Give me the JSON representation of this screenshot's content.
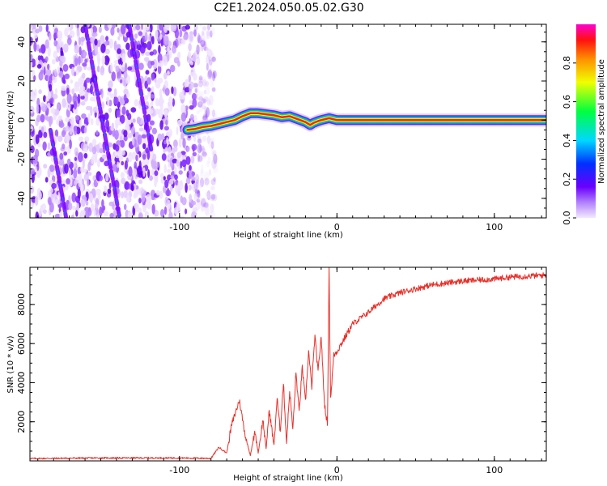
{
  "figure": {
    "title": "C2E1.2024.050.05.02.G30"
  },
  "colors": {
    "snr_line": "#e8302a",
    "ridge_cool": "#7a00ff",
    "ridge_hot": "#ff2020",
    "frame": "#000000"
  },
  "chart_data": [
    {
      "type": "heatmap",
      "name": "spectrogram",
      "xlabel": "Height of straight line (km)",
      "ylabel": "Frequency (Hz)",
      "xlim": [
        -195,
        133
      ],
      "ylim": [
        -50,
        49
      ],
      "xticks": [
        -100,
        0,
        100
      ],
      "xtick_labels": [
        "-100",
        "0",
        "100"
      ],
      "yticks": [
        -40,
        -20,
        0,
        20,
        40
      ],
      "ytick_labels": [
        "-40",
        "-20",
        "0",
        "20",
        "40"
      ],
      "grid": false,
      "noise_region_x": [
        -195,
        -77
      ],
      "ridge": {
        "x": [
          -95,
          -90,
          -85,
          -80,
          -75,
          -70,
          -65,
          -60,
          -55,
          -50,
          -45,
          -40,
          -35,
          -30,
          -25,
          -20,
          -17,
          -15,
          -12,
          -10,
          -5,
          0,
          10,
          50,
          100,
          133
        ],
        "frequency_hz": [
          -5,
          -4.5,
          -3.5,
          -3,
          -2,
          -1,
          0,
          2,
          3.5,
          3.5,
          3,
          2.5,
          1.5,
          2,
          0.5,
          -1,
          -2.5,
          -1.5,
          -0.5,
          0,
          1,
          0,
          0,
          0,
          0,
          0
        ]
      },
      "streaks": [
        {
          "x": [
            -160,
            -138
          ],
          "frequency_hz": [
            49,
            -50
          ]
        },
        {
          "x": [
            -132,
            -118
          ],
          "frequency_hz": [
            49,
            -15
          ]
        },
        {
          "x": [
            -182,
            -172
          ],
          "frequency_hz": [
            -5,
            -50
          ]
        }
      ],
      "colorbar": {
        "label": "Normalized spectral amplitude",
        "range": [
          0,
          1
        ],
        "ticks": [
          0.0,
          0.2,
          0.4,
          0.6,
          0.8
        ],
        "tick_labels": [
          "0.0",
          "0.2",
          "0.4",
          "0.6",
          "0.8"
        ]
      }
    },
    {
      "type": "line",
      "name": "snr",
      "xlabel": "Height of straight line (km)",
      "ylabel": "SNR (10 * v/v)",
      "xlim": [
        -195,
        133
      ],
      "ylim": [
        0,
        9900
      ],
      "xticks": [
        -100,
        0,
        100
      ],
      "xtick_labels": [
        "-100",
        "0",
        "100"
      ],
      "yticks": [
        2000,
        4000,
        6000,
        8000
      ],
      "ytick_labels": [
        "2000",
        "4000",
        "6000",
        "8000"
      ],
      "grid": false,
      "series": [
        {
          "x": [
            -195,
            -150,
            -100,
            -80,
            -75,
            -70,
            -67,
            -62,
            -58,
            -55,
            -52,
            -50,
            -47,
            -45,
            -43,
            -40,
            -38,
            -36,
            -34,
            -32,
            -30,
            -28,
            -26,
            -24,
            -22,
            -20,
            -18,
            -16,
            -14,
            -12,
            -10,
            -8,
            -6,
            -5,
            -4,
            -2,
            0,
            5,
            10,
            15,
            20,
            30,
            40,
            50,
            60,
            80,
            100,
            110,
            133
          ],
          "values": [
            120,
            150,
            150,
            130,
            700,
            400,
            1800,
            3100,
            1200,
            300,
            1500,
            400,
            2100,
            600,
            2600,
            800,
            3200,
            1500,
            4000,
            900,
            3600,
            1600,
            4500,
            2500,
            4800,
            3000,
            5600,
            3800,
            6400,
            4500,
            6400,
            3000,
            1800,
            9800,
            3200,
            5400,
            5600,
            6300,
            7000,
            7300,
            7600,
            8300,
            8600,
            8800,
            9000,
            9200,
            9300,
            9400,
            9500
          ]
        }
      ]
    }
  ]
}
